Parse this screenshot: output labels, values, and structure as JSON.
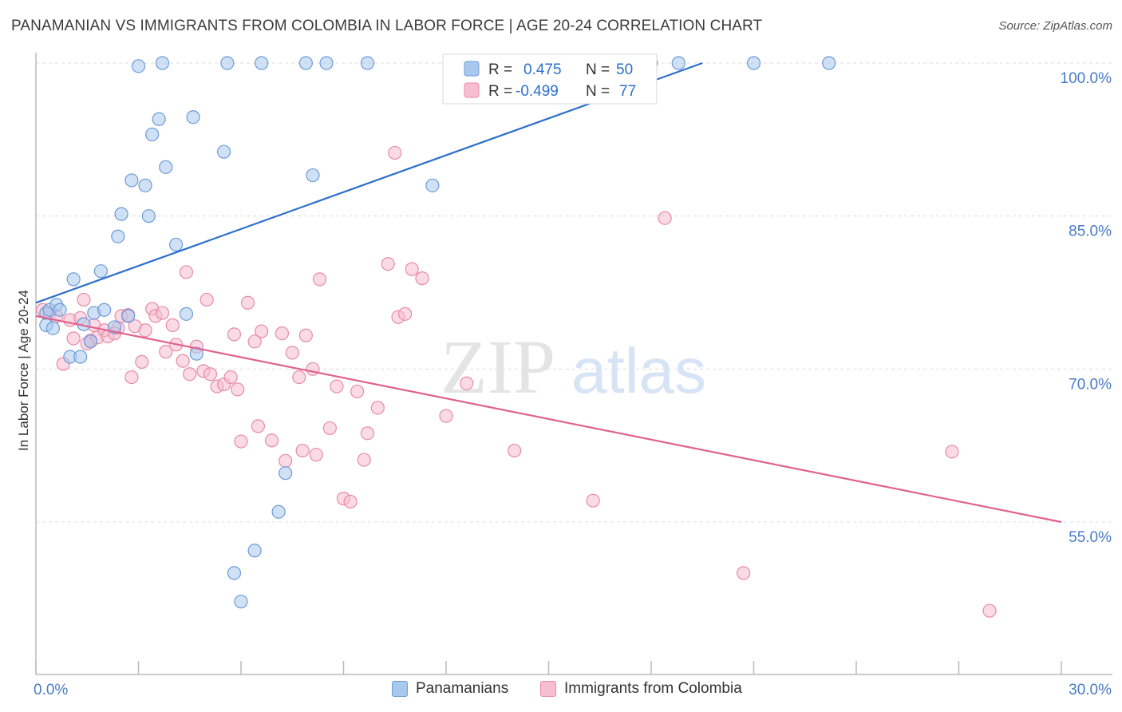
{
  "title": "PANAMANIAN VS IMMIGRANTS FROM COLOMBIA IN LABOR FORCE | AGE 20-24 CORRELATION CHART",
  "source": "Source: ZipAtlas.com",
  "watermark": {
    "zip": "ZIP",
    "atlas": "atlas"
  },
  "colors": {
    "blue_fill": "#a9c8ee",
    "blue_stroke": "#6b9bd8",
    "blue_line": "#2c6fcc",
    "pink_fill": "#f6bed0",
    "pink_stroke": "#e88aa8",
    "pink_line": "#e0628e",
    "axis_label": "#4a7cc7",
    "grid": "#dcdcdc"
  },
  "legend_box": {
    "rows": [
      {
        "r_label": "R =",
        "r_value": "0.475",
        "n_label": "N =",
        "n_value": "50"
      },
      {
        "r_label": "R =",
        "r_value": "-0.499",
        "n_label": "N =",
        "n_value": "77"
      }
    ]
  },
  "legend_bottom": [
    "Panamanians",
    "Immigrants from Colombia"
  ],
  "chart_data": {
    "type": "scatter",
    "title": "PANAMANIAN VS IMMIGRANTS FROM COLOMBIA IN LABOR FORCE | AGE 20-24 CORRELATION CHART",
    "xlabel": "",
    "ylabel": "In Labor Force | Age 20-24",
    "xlim": [
      0,
      30
    ],
    "ylim": [
      41.5,
      101.5
    ],
    "x_tick_labels": [
      "0.0%",
      "30.0%"
    ],
    "y_ticks": [
      100,
      85,
      70,
      55
    ],
    "y_tick_labels": [
      "100.0%",
      "85.0%",
      "70.0%",
      "55.0%"
    ],
    "grid": true,
    "series": [
      {
        "name": "Panamanians",
        "r": 0.475,
        "n": 50,
        "trend": {
          "x0": 0,
          "y0": 76.5,
          "x1": 19.5,
          "y1": 100
        },
        "points": [
          [
            0.3,
            75.5
          ],
          [
            0.3,
            74.3
          ],
          [
            0.4,
            75.8
          ],
          [
            0.5,
            74.0
          ],
          [
            0.6,
            76.3
          ],
          [
            0.7,
            75.8
          ],
          [
            1.0,
            71.2
          ],
          [
            1.1,
            78.8
          ],
          [
            1.3,
            71.2
          ],
          [
            1.4,
            74.4
          ],
          [
            1.6,
            72.7
          ],
          [
            1.7,
            75.5
          ],
          [
            1.9,
            79.6
          ],
          [
            2.0,
            75.8
          ],
          [
            2.3,
            74.1
          ],
          [
            2.4,
            83.0
          ],
          [
            2.5,
            85.2
          ],
          [
            2.7,
            75.2
          ],
          [
            2.8,
            88.5
          ],
          [
            3.0,
            99.7
          ],
          [
            3.2,
            88.0
          ],
          [
            3.3,
            85.0
          ],
          [
            3.4,
            93.0
          ],
          [
            3.6,
            94.5
          ],
          [
            3.7,
            100.0
          ],
          [
            3.8,
            89.8
          ],
          [
            4.1,
            82.2
          ],
          [
            4.4,
            75.4
          ],
          [
            4.6,
            94.7
          ],
          [
            4.7,
            71.5
          ],
          [
            5.5,
            91.3
          ],
          [
            5.6,
            100.0
          ],
          [
            5.8,
            50.0
          ],
          [
            6.4,
            52.2
          ],
          [
            6.6,
            100.0
          ],
          [
            7.1,
            56.0
          ],
          [
            7.3,
            59.8
          ],
          [
            7.9,
            100.0
          ],
          [
            8.1,
            89.0
          ],
          [
            8.5,
            100.0
          ],
          [
            9.7,
            100.0
          ],
          [
            11.6,
            88.0
          ],
          [
            13.7,
            100.0
          ],
          [
            14.4,
            100.0
          ],
          [
            15.9,
            100.0
          ],
          [
            18.0,
            100.0
          ],
          [
            18.8,
            100.0
          ],
          [
            21.0,
            100.0
          ],
          [
            23.2,
            100.0
          ],
          [
            6.0,
            47.2
          ]
        ]
      },
      {
        "name": "Immigrants from Colombia",
        "r": -0.499,
        "n": 77,
        "trend": {
          "x0": 0,
          "y0": 75.2,
          "x1": 30,
          "y1": 55.0
        },
        "points": [
          [
            0.2,
            75.8
          ],
          [
            0.4,
            75.5
          ],
          [
            0.6,
            75.2
          ],
          [
            0.8,
            70.5
          ],
          [
            1.0,
            74.8
          ],
          [
            1.1,
            73.0
          ],
          [
            1.3,
            75.0
          ],
          [
            1.4,
            76.8
          ],
          [
            1.6,
            72.8
          ],
          [
            1.7,
            74.3
          ],
          [
            1.8,
            73.1
          ],
          [
            2.0,
            73.8
          ],
          [
            2.1,
            73.2
          ],
          [
            2.4,
            74.0
          ],
          [
            2.5,
            75.2
          ],
          [
            2.7,
            75.3
          ],
          [
            2.8,
            69.2
          ],
          [
            2.9,
            74.2
          ],
          [
            3.1,
            70.7
          ],
          [
            3.2,
            73.8
          ],
          [
            3.4,
            75.9
          ],
          [
            3.5,
            75.2
          ],
          [
            3.7,
            75.5
          ],
          [
            3.8,
            71.7
          ],
          [
            4.0,
            74.3
          ],
          [
            4.1,
            72.4
          ],
          [
            4.3,
            70.8
          ],
          [
            4.4,
            79.5
          ],
          [
            4.5,
            69.5
          ],
          [
            4.7,
            72.2
          ],
          [
            4.9,
            69.8
          ],
          [
            5.0,
            76.8
          ],
          [
            5.1,
            69.5
          ],
          [
            5.3,
            68.3
          ],
          [
            5.5,
            68.5
          ],
          [
            5.7,
            69.2
          ],
          [
            5.8,
            73.4
          ],
          [
            5.9,
            68.0
          ],
          [
            6.0,
            62.9
          ],
          [
            6.2,
            76.5
          ],
          [
            6.4,
            72.7
          ],
          [
            6.5,
            64.4
          ],
          [
            6.6,
            73.7
          ],
          [
            6.9,
            63.0
          ],
          [
            7.2,
            73.5
          ],
          [
            7.3,
            61.0
          ],
          [
            7.5,
            71.6
          ],
          [
            7.7,
            69.2
          ],
          [
            7.8,
            62.0
          ],
          [
            7.9,
            73.3
          ],
          [
            8.1,
            70.0
          ],
          [
            8.2,
            61.6
          ],
          [
            8.3,
            78.8
          ],
          [
            8.6,
            64.2
          ],
          [
            8.8,
            68.3
          ],
          [
            9.0,
            57.3
          ],
          [
            9.2,
            57.0
          ],
          [
            9.4,
            67.8
          ],
          [
            9.6,
            61.1
          ],
          [
            9.7,
            63.7
          ],
          [
            10.0,
            66.2
          ],
          [
            10.3,
            80.3
          ],
          [
            10.5,
            91.2
          ],
          [
            10.6,
            75.1
          ],
          [
            10.8,
            75.4
          ],
          [
            11.0,
            79.8
          ],
          [
            11.3,
            78.9
          ],
          [
            12.0,
            65.4
          ],
          [
            12.6,
            68.6
          ],
          [
            14.0,
            62.0
          ],
          [
            16.3,
            57.1
          ],
          [
            18.4,
            84.8
          ],
          [
            20.7,
            50.0
          ],
          [
            26.8,
            61.9
          ],
          [
            27.9,
            46.3
          ],
          [
            1.5,
            72.5
          ],
          [
            2.3,
            73.5
          ]
        ]
      }
    ]
  }
}
